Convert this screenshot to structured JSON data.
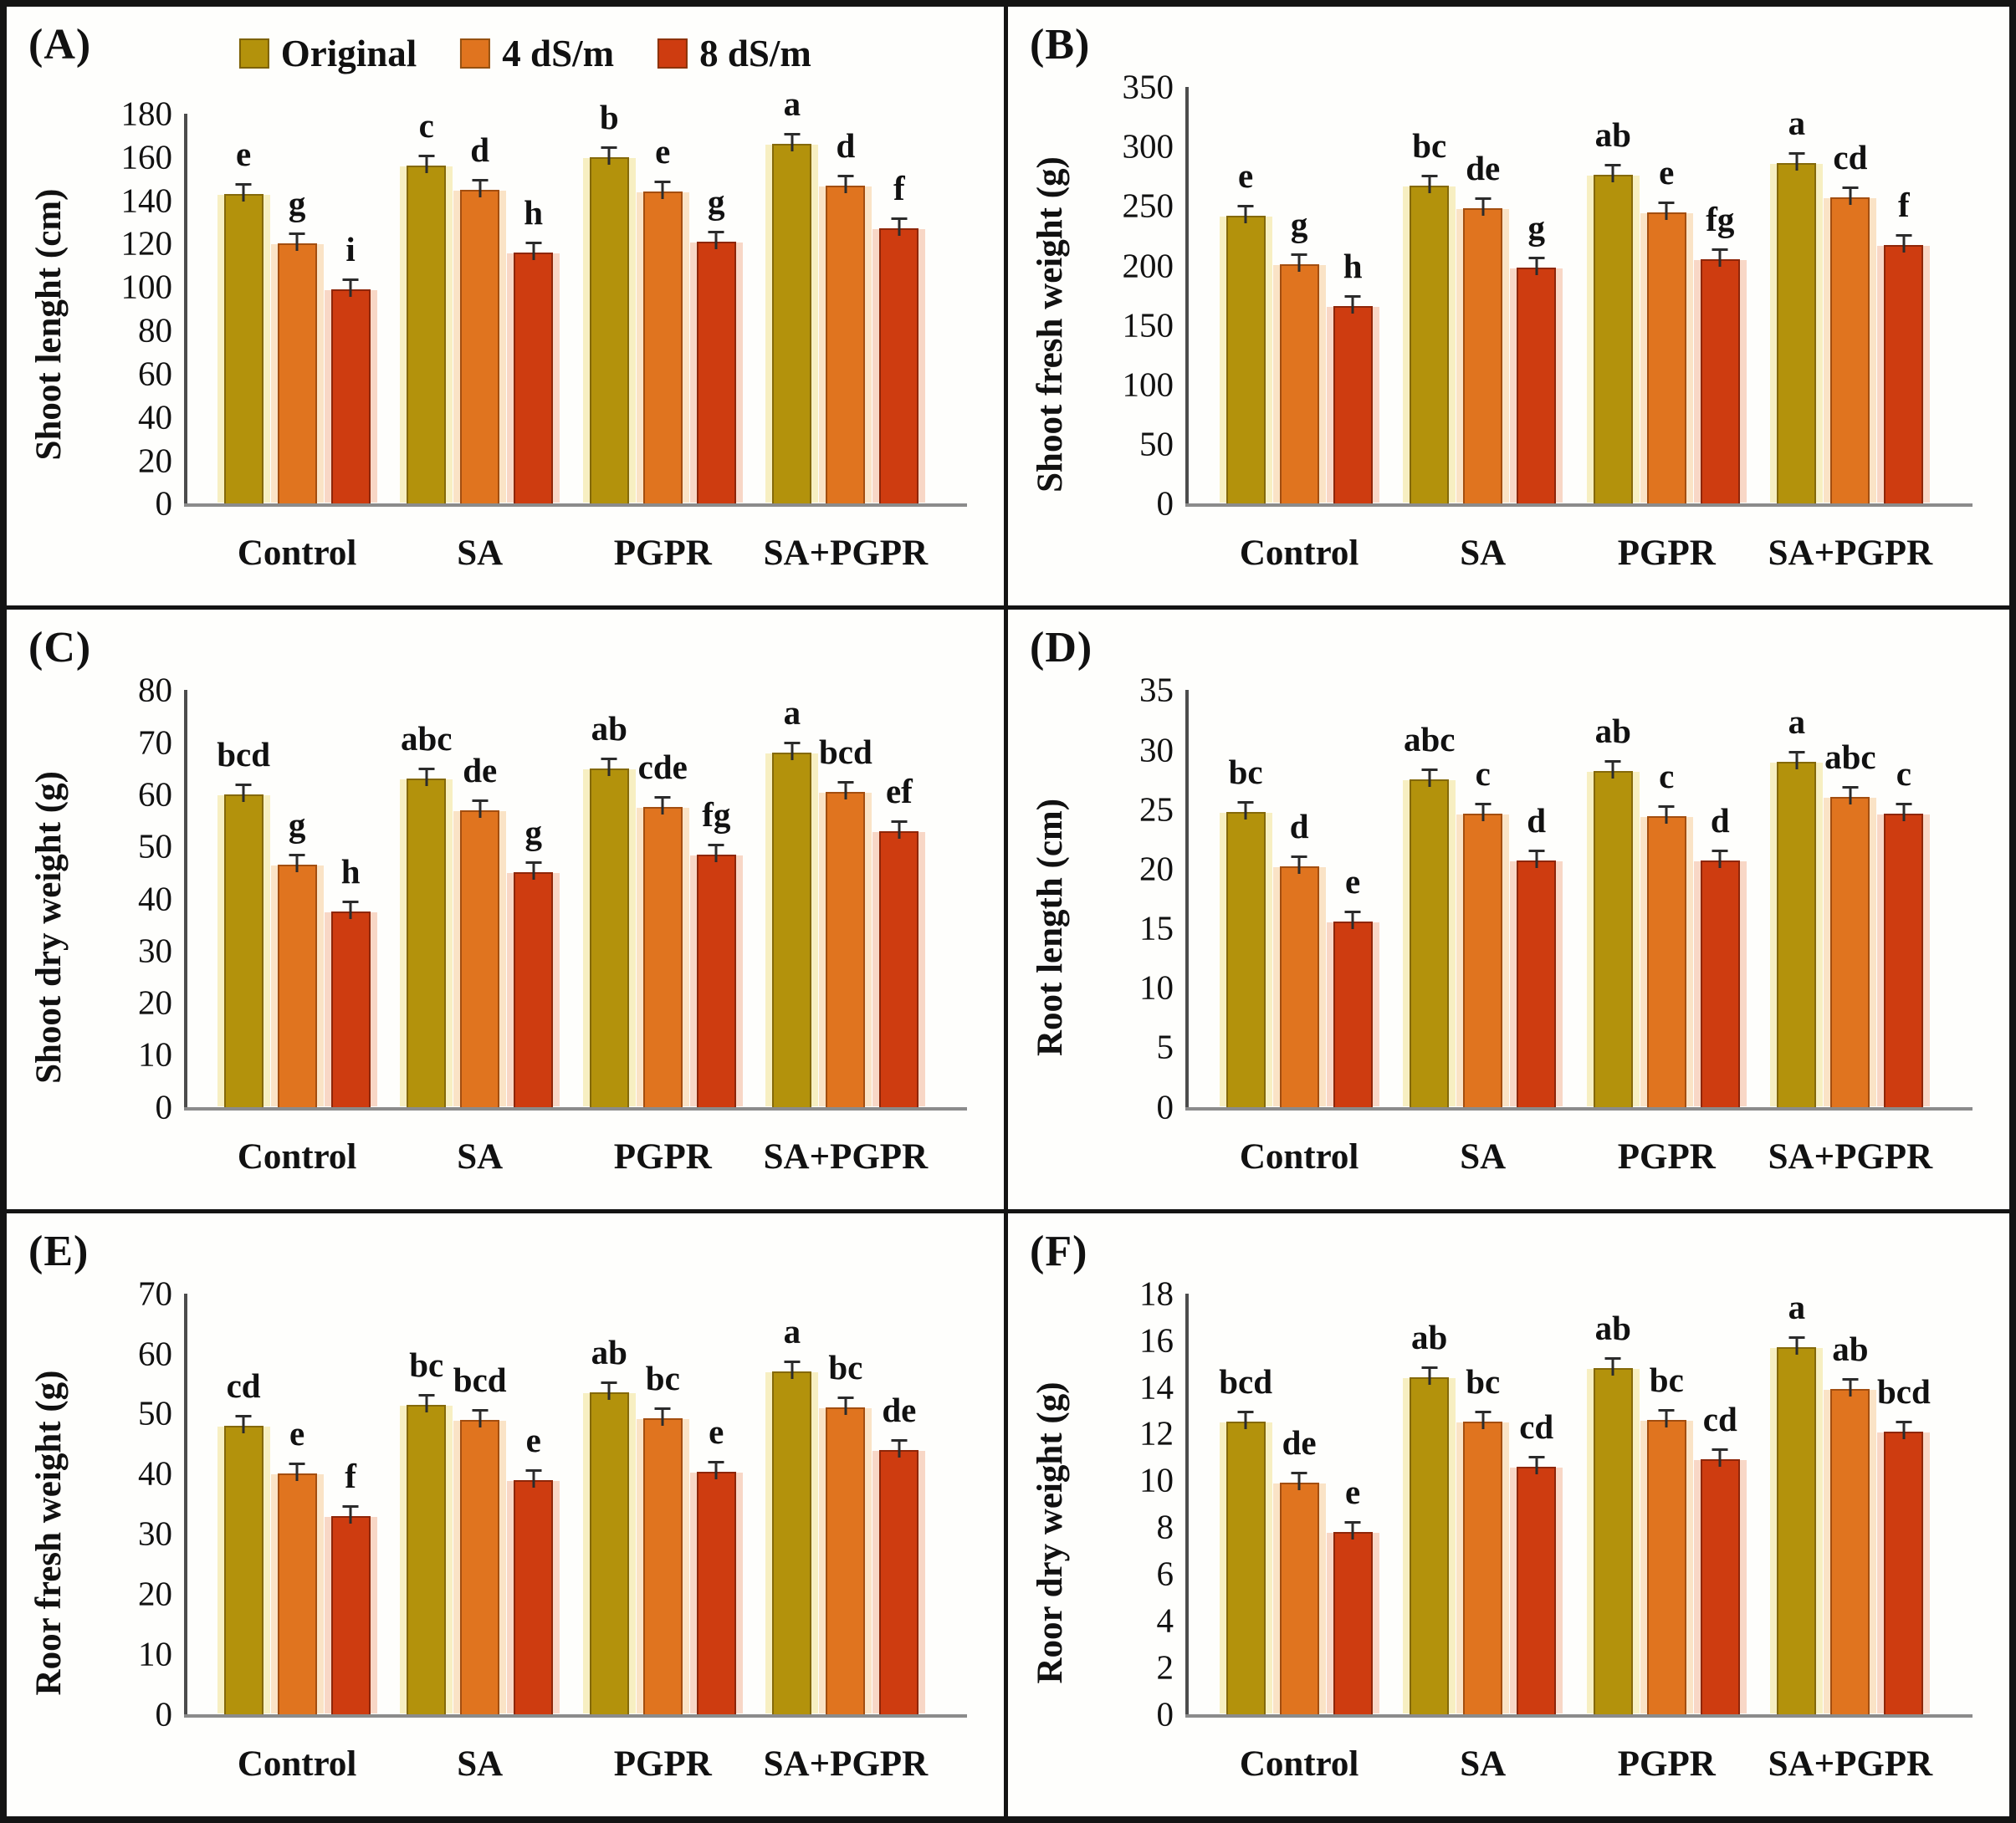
{
  "figure": {
    "legend": {
      "position": "top-center-of-panel-A",
      "items": [
        {
          "label": "Original",
          "color": "#b3920c",
          "edge": "#84690a",
          "halo": "#f7efc2"
        },
        {
          "label": "4 dS/m",
          "color": "#e0741f",
          "edge": "#a34e10",
          "halo": "#fae3c6"
        },
        {
          "label": "8 dS/m",
          "color": "#ce3c10",
          "edge": "#8e2609",
          "halo": "#f8d7c6"
        }
      ]
    },
    "categories": [
      "Control",
      "SA",
      "PGPR",
      "SA+PGPR"
    ],
    "series_names": [
      "Original",
      "4 dS/m",
      "8 dS/m"
    ],
    "error_bars": true,
    "grid": false
  },
  "chart_data": [
    {
      "type": "bar",
      "panel_label": "(A)",
      "ylabel": "Shoot lenght (cm)",
      "ylim": [
        0,
        180
      ],
      "ytick_step": 20,
      "legend_here": true,
      "categories": [
        "Control",
        "SA",
        "PGPR",
        "SA+PGPR"
      ],
      "series": [
        {
          "name": "Original",
          "values": [
            143,
            156,
            160,
            166
          ]
        },
        {
          "name": "4 dS/m",
          "values": [
            120,
            145,
            144,
            147
          ]
        },
        {
          "name": "8 dS/m",
          "values": [
            99,
            116,
            121,
            127
          ]
        }
      ],
      "sig_letters": [
        [
          "e",
          "g",
          "i"
        ],
        [
          "c",
          "d",
          "h"
        ],
        [
          "b",
          "e",
          "g"
        ],
        [
          "a",
          "d",
          "f"
        ]
      ]
    },
    {
      "type": "bar",
      "panel_label": "(B)",
      "ylabel": "Shoot fresh weight (g)",
      "ylim": [
        0,
        350
      ],
      "ytick_step": 50,
      "legend_here": false,
      "categories": [
        "Control",
        "SA",
        "PGPR",
        "SA+PGPR"
      ],
      "series": [
        {
          "name": "Original",
          "values": [
            242,
            267,
            276,
            286
          ]
        },
        {
          "name": "4 dS/m",
          "values": [
            201,
            248,
            245,
            257
          ]
        },
        {
          "name": "8 dS/m",
          "values": [
            166,
            198,
            205,
            217
          ]
        }
      ],
      "sig_letters": [
        [
          "e",
          "g",
          "h"
        ],
        [
          "bc",
          "de",
          "g"
        ],
        [
          "ab",
          "e",
          "fg"
        ],
        [
          "a",
          "cd",
          "f"
        ]
      ]
    },
    {
      "type": "bar",
      "panel_label": "(C)",
      "ylabel": "Shoot dry weight (g)",
      "ylim": [
        0,
        80
      ],
      "ytick_step": 10,
      "legend_here": false,
      "categories": [
        "Control",
        "SA",
        "PGPR",
        "SA+PGPR"
      ],
      "series": [
        {
          "name": "Original",
          "values": [
            60,
            63,
            65,
            68
          ]
        },
        {
          "name": "4 dS/m",
          "values": [
            46.5,
            57,
            57.5,
            60.5
          ]
        },
        {
          "name": "8 dS/m",
          "values": [
            37.5,
            45,
            48.5,
            53
          ]
        }
      ],
      "sig_letters": [
        [
          "bcd",
          "g",
          "h"
        ],
        [
          "abc",
          "de",
          "g"
        ],
        [
          "ab",
          "cde",
          "fg"
        ],
        [
          "a",
          "bcd",
          "ef"
        ]
      ]
    },
    {
      "type": "bar",
      "panel_label": "(D)",
      "ylabel": "Root length (cm)",
      "ylim": [
        0,
        35
      ],
      "ytick_step": 5,
      "legend_here": false,
      "categories": [
        "Control",
        "SA",
        "PGPR",
        "SA+PGPR"
      ],
      "series": [
        {
          "name": "Original",
          "values": [
            24.8,
            27.5,
            28.2,
            29
          ]
        },
        {
          "name": "4 dS/m",
          "values": [
            20.2,
            24.6,
            24.4,
            26
          ]
        },
        {
          "name": "8 dS/m",
          "values": [
            15.6,
            20.7,
            20.7,
            24.6
          ]
        }
      ],
      "sig_letters": [
        [
          "bc",
          "d",
          "e"
        ],
        [
          "abc",
          "c",
          "d"
        ],
        [
          "ab",
          "c",
          "d"
        ],
        [
          "a",
          "abc",
          "c"
        ]
      ]
    },
    {
      "type": "bar",
      "panel_label": "(E)",
      "ylabel": "Roor fresh weight (g)",
      "ylim": [
        0,
        70
      ],
      "ytick_step": 10,
      "legend_here": false,
      "categories": [
        "Control",
        "SA",
        "PGPR",
        "SA+PGPR"
      ],
      "series": [
        {
          "name": "Original",
          "values": [
            48,
            51.5,
            53.5,
            57
          ]
        },
        {
          "name": "4 dS/m",
          "values": [
            40,
            49,
            49.3,
            51
          ]
        },
        {
          "name": "8 dS/m",
          "values": [
            33,
            39,
            40.3,
            44
          ]
        }
      ],
      "sig_letters": [
        [
          "cd",
          "e",
          "f"
        ],
        [
          "bc",
          "bcd",
          "e"
        ],
        [
          "ab",
          "bc",
          "e"
        ],
        [
          "a",
          "bc",
          "de"
        ]
      ]
    },
    {
      "type": "bar",
      "panel_label": "(F)",
      "ylabel": "Roor dry weight (g)",
      "ylim": [
        0,
        18
      ],
      "ytick_step": 2,
      "legend_here": false,
      "categories": [
        "Control",
        "SA",
        "PGPR",
        "SA+PGPR"
      ],
      "series": [
        {
          "name": "Original",
          "values": [
            12.5,
            14.4,
            14.8,
            15.7
          ]
        },
        {
          "name": "4 dS/m",
          "values": [
            9.9,
            12.5,
            12.6,
            13.9
          ]
        },
        {
          "name": "8 dS/m",
          "values": [
            7.8,
            10.6,
            10.9,
            12.1
          ]
        }
      ],
      "sig_letters": [
        [
          "bcd",
          "de",
          "e"
        ],
        [
          "ab",
          "bc",
          "cd"
        ],
        [
          "ab",
          "bc",
          "cd"
        ],
        [
          "a",
          "ab",
          "bcd"
        ]
      ]
    }
  ]
}
